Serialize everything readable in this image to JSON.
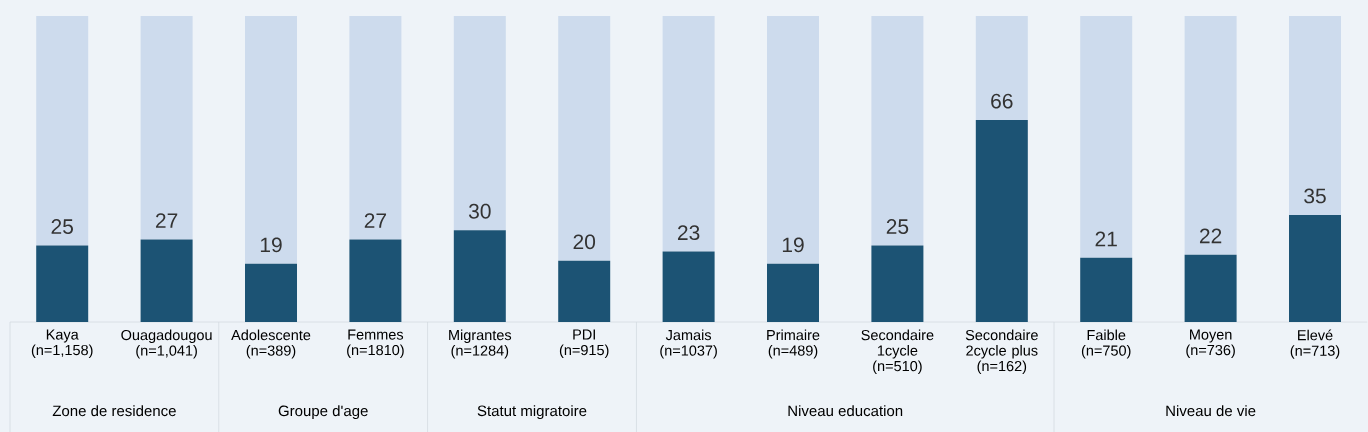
{
  "chart_data": [
    {
      "type": "bar",
      "stacked": true,
      "xlabel": "Zone de residence",
      "categories": [
        "Kaya\n(n=1,158)",
        "Ouagadougou\n(n=1,041)"
      ],
      "ylim": [
        0,
        100
      ],
      "tick_labels": "x",
      "series": [
        {
          "color": "#1c5374",
          "values": [
            25,
            27
          ],
          "value_labels": [
            "25",
            "27"
          ]
        },
        {
          "color": "#cddbed",
          "values": [
            75,
            73
          ]
        }
      ]
    },
    {
      "type": "bar",
      "stacked": true,
      "xlabel": "Groupe d'age",
      "categories": [
        "Adolescente\n(n=389)",
        "Femmes\n(n=1810)"
      ],
      "ylim": [
        0,
        100
      ],
      "tick_labels": "x",
      "series": [
        {
          "color": "#1c5374",
          "values": [
            19,
            27
          ],
          "value_labels": [
            "19",
            "27"
          ]
        },
        {
          "color": "#cddbed",
          "values": [
            81,
            73
          ]
        }
      ]
    },
    {
      "type": "bar",
      "stacked": true,
      "xlabel": "Statut migratoire",
      "categories": [
        "Migrantes\n(n=1284)",
        "PDI\n(n=915)"
      ],
      "ylim": [
        0,
        100
      ],
      "tick_labels": "x",
      "series": [
        {
          "color": "#1c5374",
          "values": [
            30,
            20
          ],
          "value_labels": [
            "30",
            "20"
          ]
        },
        {
          "color": "#cddbed",
          "values": [
            70,
            80
          ]
        }
      ]
    },
    {
      "type": "bar",
      "stacked": true,
      "xlabel": "Niveau education",
      "categories": [
        "Jamais\n(n=1037)",
        "Primaire\n(n=489)",
        "Secondaire\n1cycle\n(n=510)",
        "Secondaire\n2cycle plus\n(n=162)"
      ],
      "ylim": [
        0,
        100
      ],
      "tick_labels": "x",
      "series": [
        {
          "color": "#1c5374",
          "values": [
            23,
            19,
            25,
            66
          ],
          "value_labels": [
            "23",
            "19",
            "25",
            "66"
          ]
        },
        {
          "color": "#cddbed",
          "values": [
            77,
            81,
            75,
            34
          ]
        }
      ]
    },
    {
      "type": "bar",
      "stacked": true,
      "xlabel": "Niveau de vie",
      "categories": [
        "Faible\n(n=750)",
        "Moyen\n(n=736)",
        "Elevé\n(n=713)"
      ],
      "ylim": [
        0,
        100
      ],
      "tick_labels": "x",
      "series": [
        {
          "color": "#1c5374",
          "values": [
            21,
            22,
            35
          ],
          "value_labels": [
            "21",
            "22",
            "35"
          ]
        },
        {
          "color": "#cddbed",
          "values": [
            79,
            78,
            65
          ]
        }
      ]
    }
  ]
}
